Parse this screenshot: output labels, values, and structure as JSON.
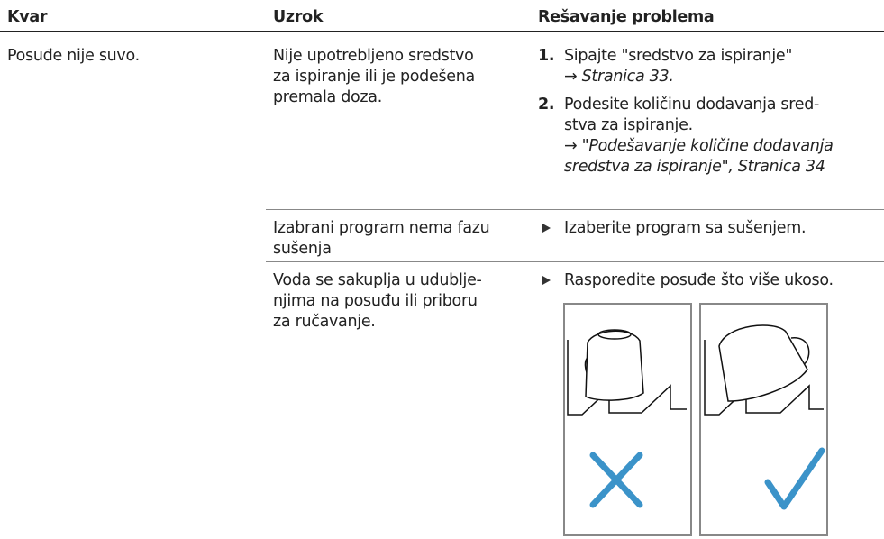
{
  "table": {
    "header": [
      "Kvar",
      "Uzrok",
      "Rešavanje problema"
    ],
    "fault": "Posuđe nije suvo.",
    "rows": [
      {
        "cause": [
          "Nije upotrebljeno sredstvo",
          "za ispiranje ili je podešena",
          "premala doza."
        ],
        "remedy": [
          {
            "marker": "1.",
            "text": [
              "Sipajte \"sredstvo za ispiranje\""
            ],
            "ref": [
              "→ Stranica 33."
            ]
          },
          {
            "marker": "2.",
            "text": [
              "Podesite količinu dodavanja sred-",
              "stva za ispiranje."
            ],
            "ref": [
              "→ \"Podešavanje količine dodavanja",
              "sredstva za ispiranje\", Stranica 34"
            ]
          }
        ]
      },
      {
        "cause": [
          "Izabrani program nema fazu",
          "sušenja"
        ],
        "remedy": [
          {
            "text": [
              "Izaberite program sa sušenjem."
            ]
          }
        ]
      },
      {
        "cause": [
          "Voda se sakuplja u udublje-",
          "njima na posuđu ili priboru",
          "za ručavanje."
        ],
        "remedy": [
          {
            "text": [
              "Rasporedite posuđe što više ukoso."
            ]
          }
        ]
      }
    ]
  }
}
